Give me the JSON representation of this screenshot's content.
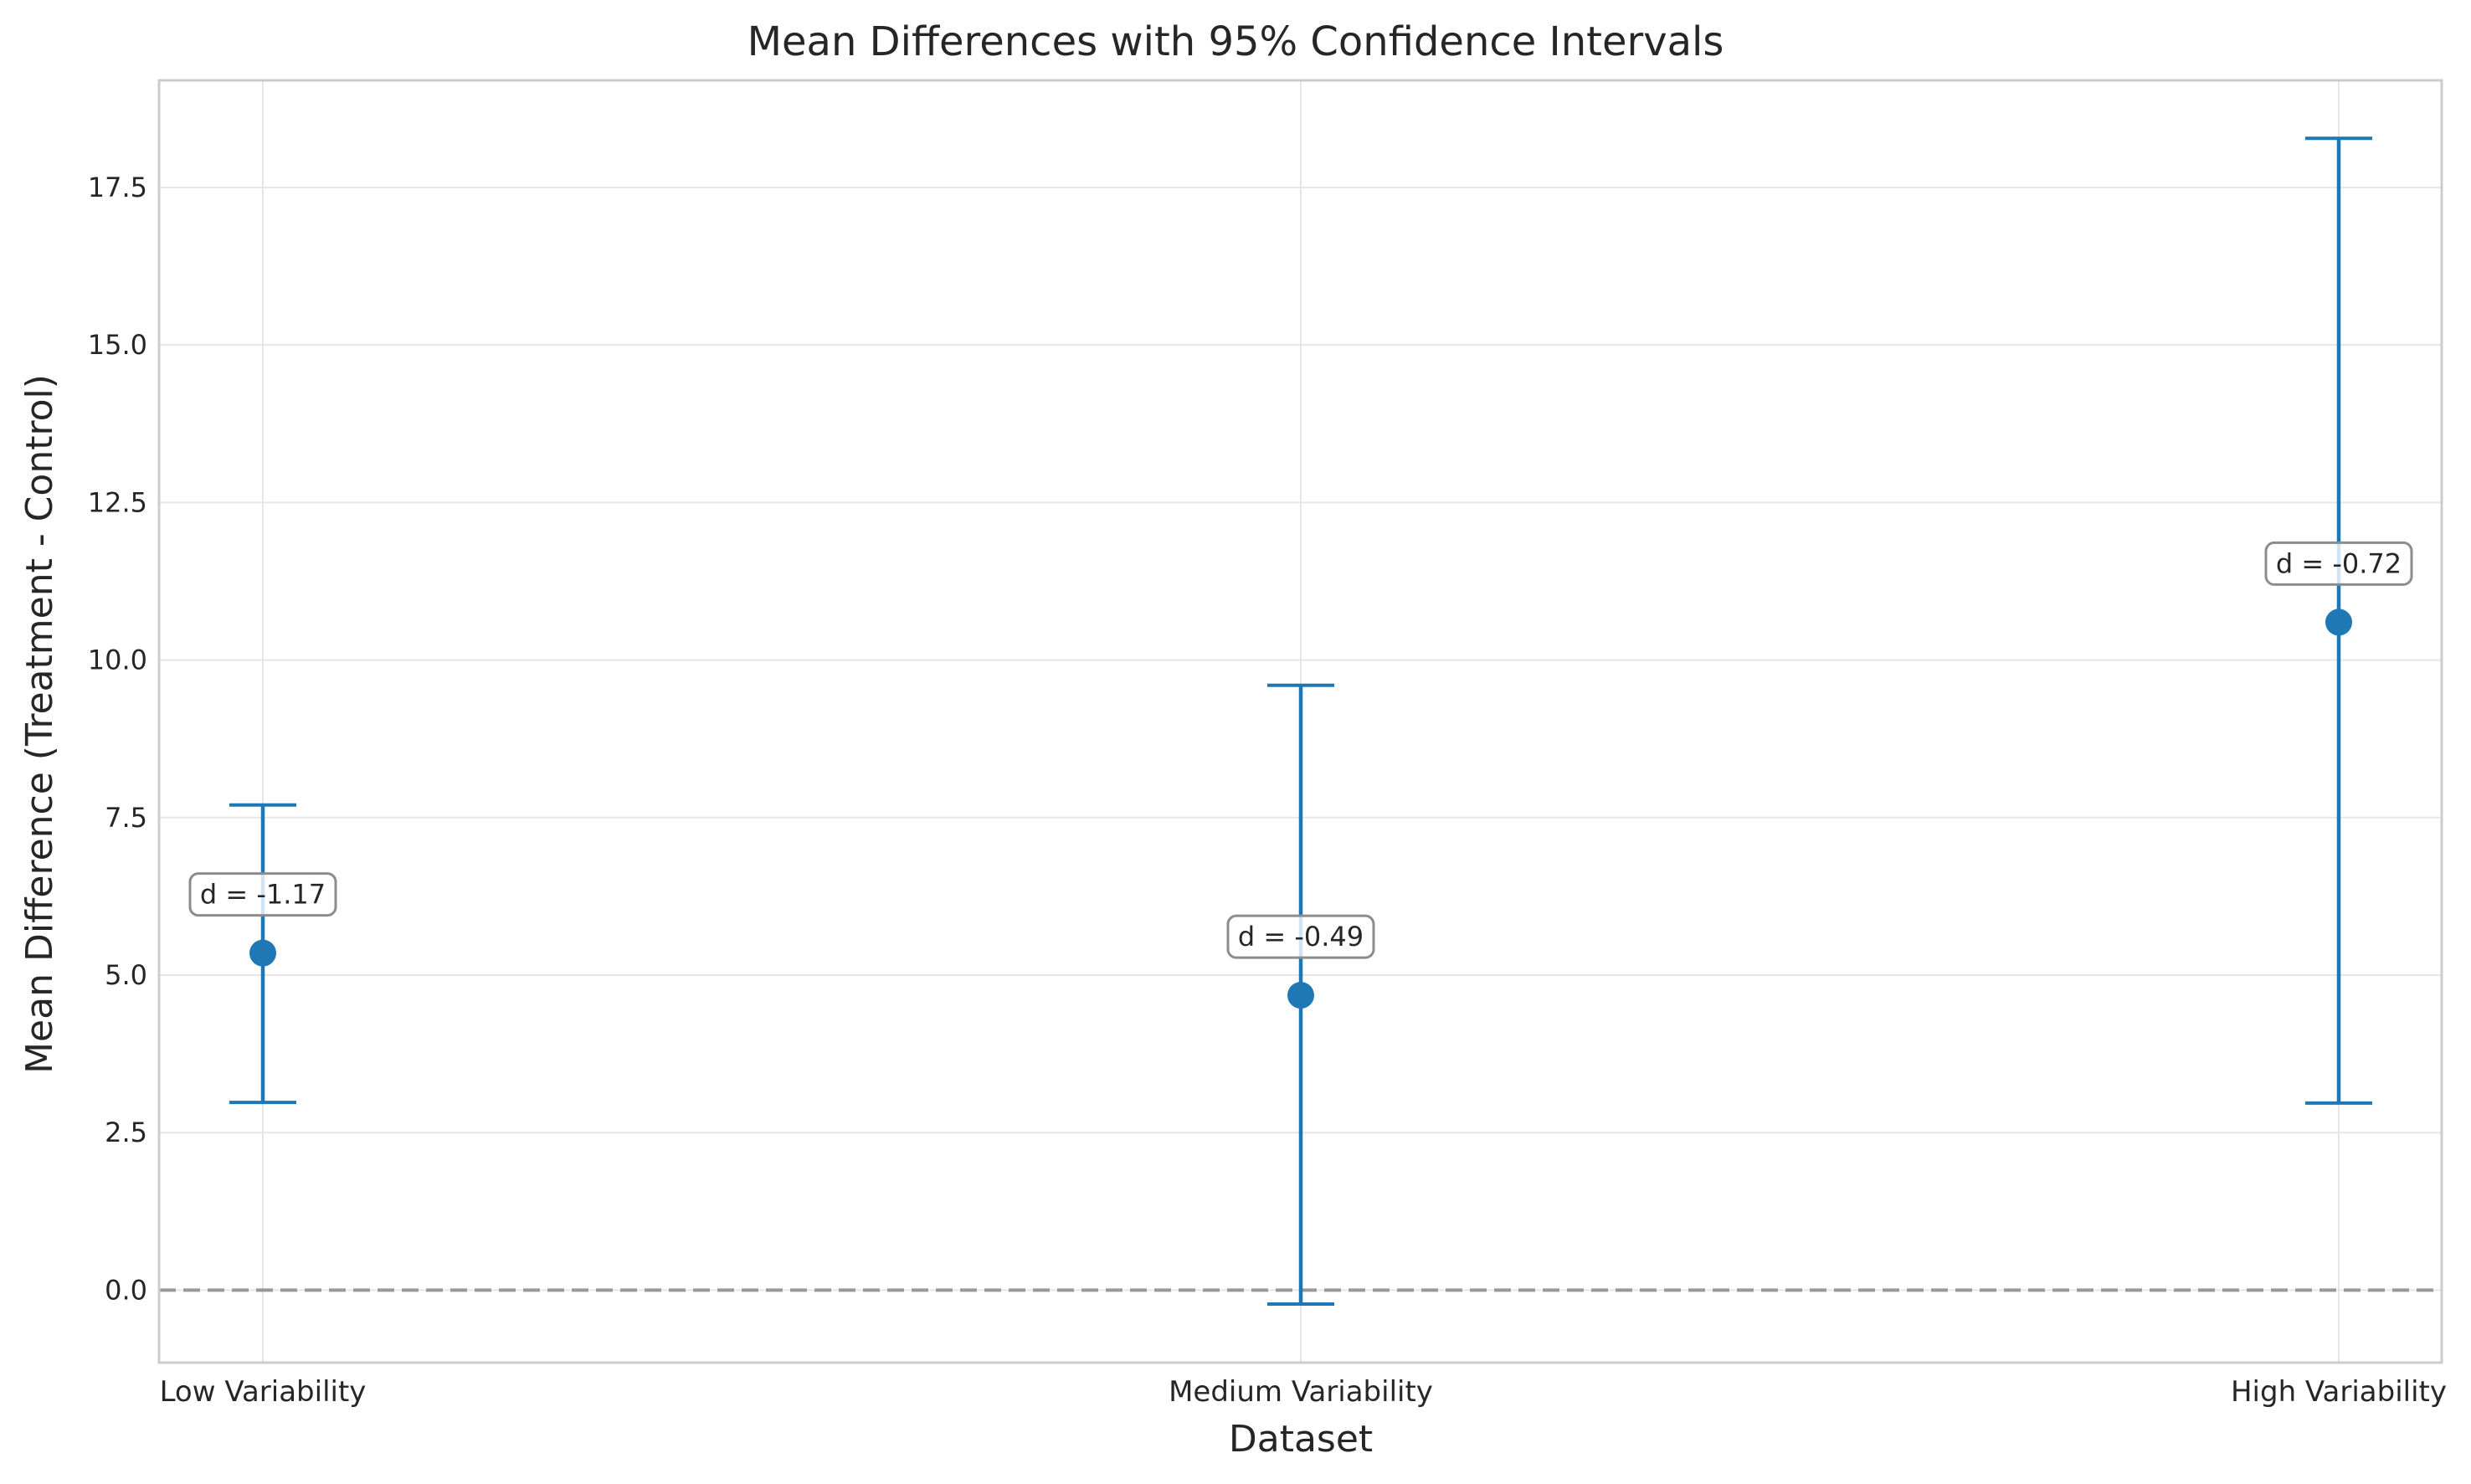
{
  "chart_data": {
    "type": "scatter",
    "title": "Mean Differences with 95% Confidence Intervals",
    "xlabel": "Dataset",
    "ylabel": "Mean Difference (Treatment - Control)",
    "categories": [
      "Low Variability",
      "Medium Variability",
      "High Variability"
    ],
    "points": [
      {
        "category": "Low Variability",
        "mean": 5.35,
        "ci_low": 2.98,
        "ci_high": 7.7,
        "annotation": "d = -1.17"
      },
      {
        "category": "Medium Variability",
        "mean": 4.68,
        "ci_low": -0.22,
        "ci_high": 9.6,
        "annotation": "d = -0.49"
      },
      {
        "category": "High Variability",
        "mean": 10.6,
        "ci_low": 2.97,
        "ci_high": 18.28,
        "annotation": "d = -0.72"
      }
    ],
    "reference_line": {
      "y": 0.0,
      "style": "dashed",
      "color": "#999999"
    },
    "ylim": [
      -1.15,
      19.2
    ],
    "yticks": [
      0.0,
      2.5,
      5.0,
      7.5,
      10.0,
      12.5,
      15.0,
      17.5
    ],
    "ytick_labels": [
      "0.0",
      "2.5",
      "5.0",
      "7.5",
      "10.0",
      "12.5",
      "15.0",
      "17.5"
    ],
    "grid": true,
    "colors": {
      "marker": "#1f77b4",
      "grid": "#e6e6e6",
      "spine": "#cccccc",
      "reference": "#999999",
      "annotation_border": "#8c8c8c"
    }
  }
}
